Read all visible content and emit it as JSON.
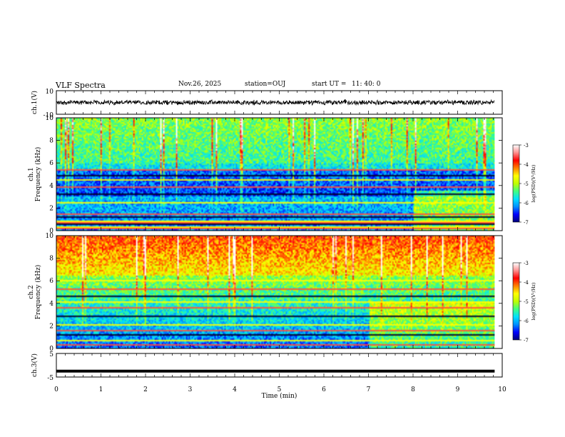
{
  "header": {
    "title": "VLF Spectra",
    "date": "Nov.26, 2025",
    "station": "station=OUJ",
    "start_label": "start  UT =",
    "start_time": "11: 40: 0"
  },
  "colors": {
    "colormap": [
      "#00007a",
      "#0000ff",
      "#0090ff",
      "#00e0ff",
      "#40ff80",
      "#c0ff00",
      "#ffff00",
      "#ff8000",
      "#ff0000",
      "#ff9090",
      "#ffffff"
    ],
    "axes": "#000000"
  },
  "chart_data": [
    {
      "name": "ch1-waveform",
      "type": "line",
      "ylabel": "ch.1(V)",
      "ylim": [
        -10,
        10
      ],
      "yticks": [
        "10",
        "-10"
      ],
      "xlim": [
        0,
        10
      ],
      "baseline": 0,
      "amplitude_typical": 2,
      "data_end_min": 9.83
    },
    {
      "name": "ch1-spectrogram",
      "type": "heatmap",
      "ylabel_line1": "ch.1",
      "ylabel_line2": "Frequency (kHz)",
      "ylim": [
        0,
        10
      ],
      "yticks": [
        "0",
        "2",
        "4",
        "6",
        "8",
        "10"
      ],
      "xlim": [
        0,
        10
      ],
      "data_end_min": 9.83,
      "colorbar": {
        "label": "log(PSD)(V²/Hz)",
        "range": [
          -7,
          -3
        ],
        "ticks": [
          "-3",
          "-4",
          "-5",
          "-6",
          "-7"
        ]
      },
      "lines_khz": [
        0.1,
        0.25,
        0.45,
        0.6,
        0.8,
        1.1,
        1.4,
        2.5,
        3.2,
        3.9,
        4.5,
        4.9,
        5.4
      ]
    },
    {
      "name": "ch2-spectrogram",
      "type": "heatmap",
      "ylabel_line1": "ch.2",
      "ylabel_line2": "Frequency (kHz)",
      "ylim": [
        0,
        10
      ],
      "yticks": [
        "0",
        "2",
        "4",
        "6",
        "8",
        "10"
      ],
      "xlim": [
        0,
        10
      ],
      "data_end_min": 9.83,
      "colorbar": {
        "label": "log(PSD)(V²/Hz)",
        "range": [
          -7,
          -3
        ],
        "ticks": [
          "-3",
          "-4",
          "-5",
          "-6",
          "-7"
        ]
      },
      "lines_khz": [
        0.3,
        0.7,
        1.2,
        1.6,
        2.1,
        2.8,
        3.6,
        4.1,
        4.6,
        5.2,
        6.0
      ]
    },
    {
      "name": "ch3-waveform",
      "type": "line",
      "ylabel": "ch.3(V)",
      "ylim": [
        -5,
        5
      ],
      "yticks": [
        "5",
        "-5"
      ],
      "xlim": [
        0,
        10
      ],
      "baseline": -2.5,
      "data_end_min": 9.83
    }
  ],
  "xaxis": {
    "label": "Time (min)",
    "ticks": [
      "0",
      "1",
      "2",
      "3",
      "4",
      "5",
      "6",
      "7",
      "8",
      "9",
      "10"
    ]
  }
}
